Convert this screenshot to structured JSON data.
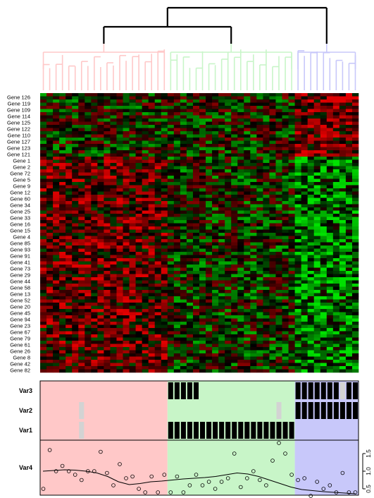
{
  "chart_data": {
    "type": "heatmap",
    "title": "",
    "gene_labels": [
      "Gene 126",
      "Gene 119",
      "Gene 109",
      "Gene 114",
      "Gene 125",
      "Gene 122",
      "Gene 110",
      "Gene 127",
      "Gene 123",
      "Gene 121",
      "Gene 1",
      "Gene 2",
      "Gene 72",
      "Gene 5",
      "Gene 9",
      "Gene 12",
      "Gene 60",
      "Gene 34",
      "Gene 25",
      "Gene 33",
      "Gene 16",
      "Gene 15",
      "Gene 4",
      "Gene 85",
      "Gene 93",
      "Gene 91",
      "Gene 41",
      "Gene 73",
      "Gene 29",
      "Gene 44",
      "Gene 58",
      "Gene 13",
      "Gene 52",
      "Gene 20",
      "Gene 45",
      "Gene 94",
      "Gene 23",
      "Gene 67",
      "Gene 79",
      "Gene 61",
      "Gene 26",
      "Gene 8",
      "Gene 42",
      "Gene 82"
    ],
    "sample_count": 50,
    "clusters": [
      {
        "color": "#ffc8c8",
        "size": 20
      },
      {
        "color": "#c8f5c8",
        "size": 20
      },
      {
        "color": "#c8c8fa",
        "size": 10
      }
    ],
    "dendrogram_color": "#000000",
    "heatmap_colors": {
      "low": "#00e000",
      "mid": "#000000",
      "high": "#e00000"
    },
    "annotation_tracks": [
      "Var3",
      "Var2",
      "Var1"
    ],
    "binary_tracks": {
      "Var3": [
        0,
        0,
        0,
        0,
        0,
        0,
        0,
        0,
        0,
        0,
        0,
        0,
        0,
        0,
        0,
        0,
        0,
        0,
        0,
        0,
        1,
        1,
        1,
        1,
        1,
        0,
        0,
        0,
        0,
        0,
        0,
        0,
        0,
        0,
        0,
        0,
        0,
        0,
        0,
        0,
        1,
        1,
        1,
        1,
        1,
        1,
        1,
        2,
        1,
        1
      ],
      "Var2": [
        0,
        0,
        0,
        0,
        0,
        0,
        2,
        0,
        0,
        0,
        0,
        0,
        0,
        0,
        0,
        0,
        0,
        0,
        0,
        0,
        0,
        0,
        0,
        0,
        0,
        0,
        0,
        0,
        0,
        0,
        0,
        0,
        0,
        0,
        0,
        0,
        0,
        2,
        0,
        0,
        1,
        1,
        1,
        1,
        1,
        1,
        1,
        1,
        1,
        1
      ],
      "Var1": [
        0,
        0,
        0,
        0,
        0,
        0,
        2,
        0,
        0,
        0,
        0,
        0,
        0,
        0,
        0,
        0,
        0,
        0,
        0,
        0,
        1,
        1,
        1,
        1,
        1,
        1,
        1,
        1,
        1,
        1,
        1,
        1,
        1,
        1,
        1,
        1,
        1,
        1,
        1,
        1,
        0,
        0,
        0,
        0,
        0,
        0,
        0,
        0,
        0,
        0
      ]
    },
    "track_colors": {
      "on": "#000000",
      "na": "#d3d3d3"
    },
    "continuous_track": {
      "label": "Var4",
      "ylim": [
        0.4,
        1.8
      ],
      "yticks": [
        "0.5",
        "1.0",
        "1.5"
      ],
      "points": [
        0.5,
        1.6,
        1.0,
        1.15,
        1.0,
        0.9,
        0.75,
        1.0,
        1.0,
        1.55,
        0.95,
        0.6,
        1.2,
        0.8,
        0.85,
        0.5,
        0.4,
        0.85,
        0.4,
        0.9,
        0.4,
        0.85,
        0.4,
        0.6,
        0.9,
        0.6,
        0.7,
        0.5,
        0.7,
        0.8,
        1.5,
        0.55,
        0.8,
        1.0,
        0.75,
        0.6,
        1.3,
        1.8,
        1.5,
        0.9,
        0.75,
        0.8,
        0.3,
        0.7,
        0.5,
        0.6,
        0.4,
        0.95,
        0.4,
        0.4
      ],
      "trend": [
        1.0,
        1.02,
        1.04,
        1.03,
        1.0,
        0.95,
        0.85,
        0.7,
        0.62,
        0.65,
        0.7,
        0.72,
        0.75,
        0.78,
        0.8,
        0.82,
        0.85,
        0.9,
        0.95,
        0.92,
        0.85,
        0.75,
        0.65,
        0.55,
        0.48,
        0.45,
        0.42,
        0.4,
        0.38,
        0.36
      ]
    }
  }
}
